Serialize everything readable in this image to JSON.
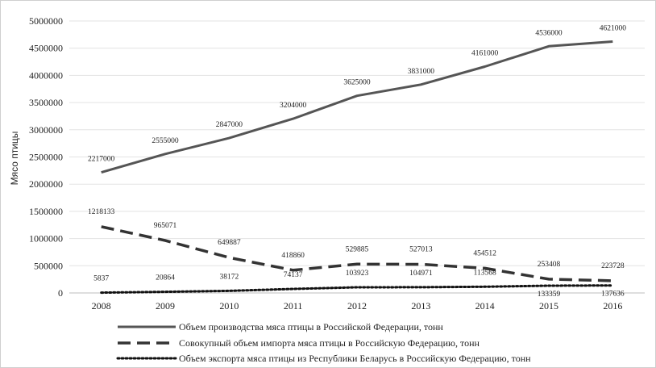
{
  "chart_data": {
    "type": "line",
    "categories": [
      "2008",
      "2009",
      "2010",
      "2011",
      "2012",
      "2013",
      "2014",
      "2015",
      "2016"
    ],
    "ylabel": "Мясо птицы",
    "xlabel": "",
    "title": "",
    "ylim": [
      0,
      5000000
    ],
    "yticks": [
      "0",
      "500000",
      "1000000",
      "1500000",
      "2000000",
      "2500000",
      "3000000",
      "3500000",
      "4000000",
      "4500000",
      "5000000"
    ],
    "grid": true,
    "legend_position": "bottom",
    "series": [
      {
        "name": "Объем производства мяса птицы в Российской Федерации, тонн",
        "style": "solid",
        "color": "#555555",
        "values": [
          2217000,
          2555000,
          2847000,
          3204000,
          3625000,
          3831000,
          4161000,
          4536000,
          4621000
        ],
        "labels": [
          "2217000",
          "2555000",
          "2847000",
          "3204000",
          "3625000",
          "3831000",
          "4161000",
          "4536000",
          "4621000"
        ]
      },
      {
        "name": "Совокупный объем импорта мяса птицы в Российскую Федерацию, тонн",
        "style": "dashed",
        "color": "#333333",
        "values": [
          1218133,
          965071,
          649887,
          418860,
          529885,
          527013,
          454512,
          253408,
          223728
        ],
        "labels": [
          "1218133",
          "965071",
          "649887",
          "418860",
          "529885",
          "527013",
          "454512",
          "253408",
          "223728"
        ]
      },
      {
        "name": "Объем экспорта мяса птицы из Республики Беларусь в Российскую Федерацию, тонн",
        "style": "dotted",
        "color": "#111111",
        "values": [
          5837,
          20864,
          38172,
          74137,
          103923,
          104971,
          113568,
          133359,
          137636
        ],
        "labels": [
          "5837",
          "20864",
          "38172",
          "74137",
          "103923",
          "104971",
          "113568",
          "133359",
          "137636"
        ]
      }
    ]
  }
}
